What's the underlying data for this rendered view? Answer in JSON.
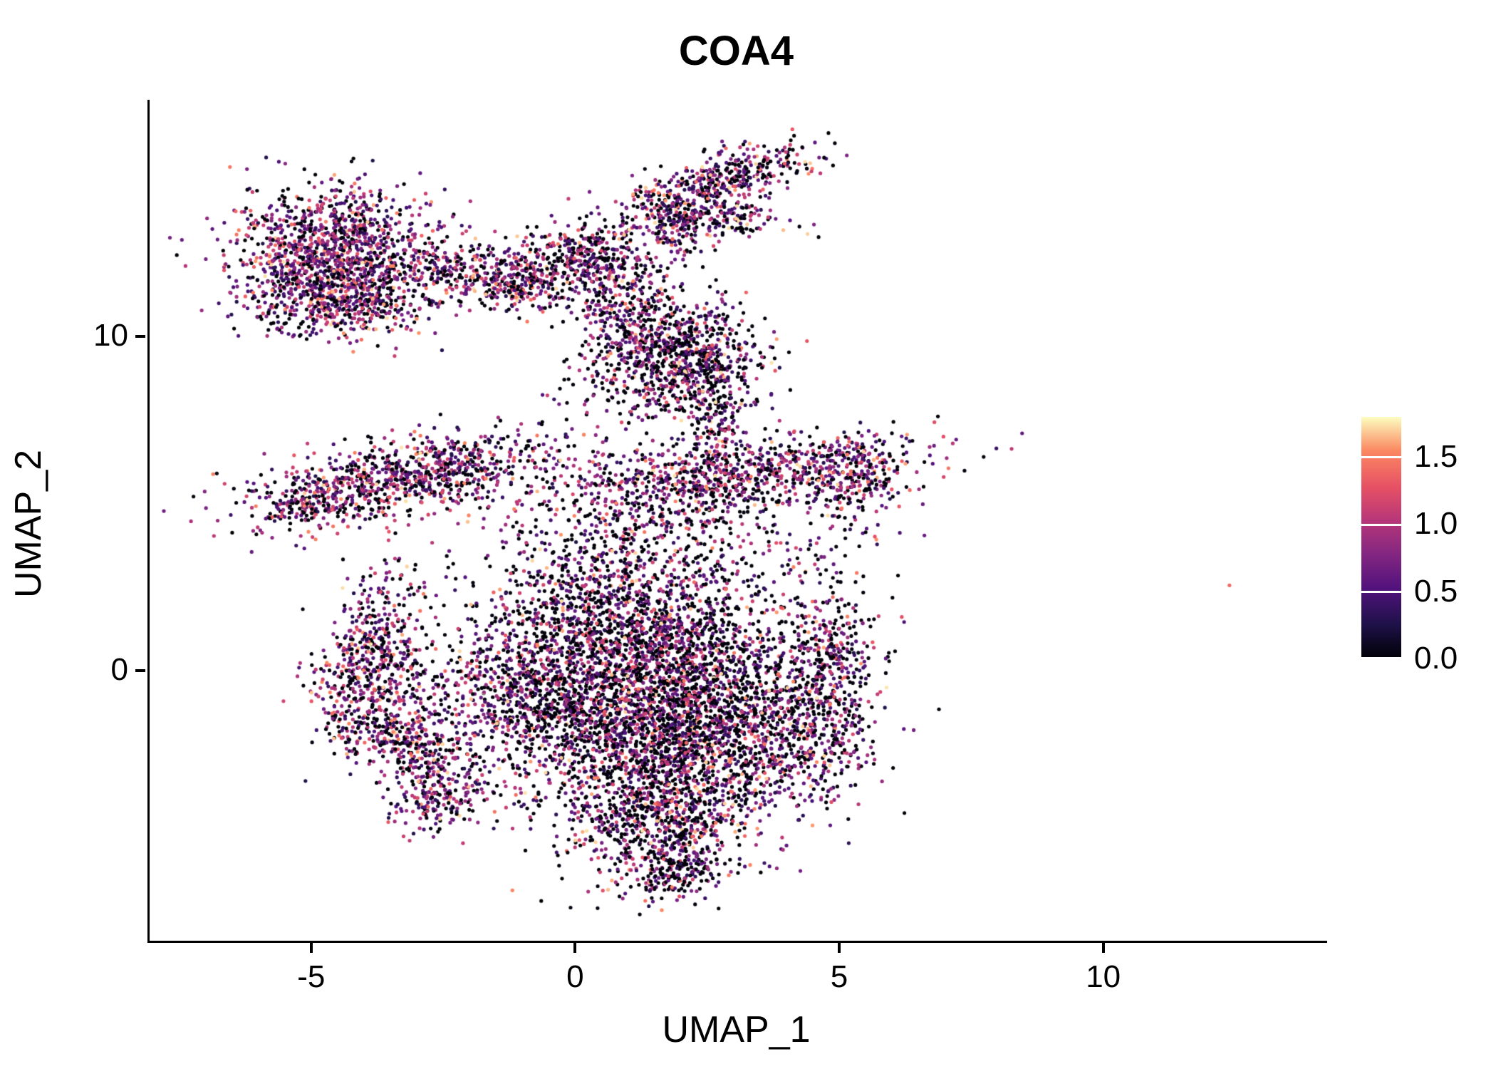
{
  "chart_data": {
    "type": "scatter",
    "title": "COA4",
    "xlabel": "UMAP_1",
    "ylabel": "UMAP_2",
    "xlim": [
      -8.1,
      14.2
    ],
    "ylim": [
      -8.1,
      17.1
    ],
    "xticks": [
      {
        "v": -5,
        "label": "-5"
      },
      {
        "v": 0,
        "label": "0"
      },
      {
        "v": 5,
        "label": "5"
      },
      {
        "v": 10,
        "label": "10"
      }
    ],
    "yticks": [
      {
        "v": 0,
        "label": "0"
      },
      {
        "v": 10,
        "label": "10"
      }
    ],
    "point_radius": 2.6,
    "grid": false,
    "colormap": {
      "name": "magma",
      "domain": [
        0,
        1.8
      ],
      "stops": [
        {
          "t": 0.0,
          "color": "#000004"
        },
        {
          "t": 0.14,
          "color": "#1d1147"
        },
        {
          "t": 0.29,
          "color": "#51127c"
        },
        {
          "t": 0.43,
          "color": "#822681"
        },
        {
          "t": 0.57,
          "color": "#b63679"
        },
        {
          "t": 0.71,
          "color": "#e65164"
        },
        {
          "t": 0.86,
          "color": "#fb8761"
        },
        {
          "t": 1.0,
          "color": "#fcfdbf"
        }
      ]
    },
    "legend": {
      "position": "right",
      "ticks": [
        {
          "v": 0.0,
          "label": "0.0"
        },
        {
          "v": 0.5,
          "label": "0.5"
        },
        {
          "v": 1.0,
          "label": "1.0"
        },
        {
          "v": 1.5,
          "label": "1.5"
        }
      ]
    },
    "expression_bins": [
      [
        0,
        0.05
      ],
      [
        0.25,
        0.7
      ],
      [
        0.7,
        1.2
      ],
      [
        1.2,
        1.75
      ]
    ],
    "clusters": [
      {
        "name": "topleft-main",
        "n": 1400,
        "cx": -4.6,
        "cy": 12.4,
        "sx": 0.95,
        "sy": 1.0,
        "rot": 0,
        "expr": [
          0.28,
          0.3,
          0.32,
          0.1
        ]
      },
      {
        "name": "topleft-fringe",
        "n": 260,
        "cx": -4.4,
        "cy": 10.9,
        "sx": 0.85,
        "sy": 0.45,
        "rot": 0,
        "expr": [
          0.32,
          0.3,
          0.28,
          0.1
        ]
      },
      {
        "name": "bridge-a",
        "n": 170,
        "cx": -2.2,
        "cy": 11.9,
        "sx": 0.5,
        "sy": 0.4,
        "rot": 0,
        "expr": [
          0.35,
          0.28,
          0.27,
          0.1
        ]
      },
      {
        "name": "bridge-b",
        "n": 90,
        "cx": -1.2,
        "cy": 11.4,
        "sx": 0.35,
        "sy": 0.3,
        "rot": 0,
        "expr": [
          0.35,
          0.28,
          0.27,
          0.1
        ]
      },
      {
        "name": "topcenter",
        "n": 520,
        "cx": -0.1,
        "cy": 12.3,
        "sx": 1.0,
        "sy": 0.5,
        "rot": 25,
        "expr": [
          0.38,
          0.27,
          0.26,
          0.09
        ]
      },
      {
        "name": "topcenter-ext",
        "n": 160,
        "cx": 0.7,
        "cy": 11.3,
        "sx": 0.55,
        "sy": 0.6,
        "rot": 0,
        "expr": [
          0.4,
          0.26,
          0.25,
          0.09
        ]
      },
      {
        "name": "topcenter-trail",
        "n": 130,
        "cx": 1.0,
        "cy": 10.4,
        "sx": 0.5,
        "sy": 0.7,
        "rot": 0,
        "expr": [
          0.42,
          0.26,
          0.24,
          0.08
        ]
      },
      {
        "name": "topright-flag",
        "n": 430,
        "cx": 2.7,
        "cy": 14.7,
        "sx": 1.0,
        "sy": 0.36,
        "rot": 28,
        "expr": [
          0.36,
          0.27,
          0.27,
          0.1
        ]
      },
      {
        "name": "topright-bar",
        "n": 190,
        "cx": 2.5,
        "cy": 13.6,
        "sx": 0.8,
        "sy": 0.25,
        "rot": -8,
        "expr": [
          0.38,
          0.27,
          0.26,
          0.09
        ]
      },
      {
        "name": "topright-stem",
        "n": 90,
        "cx": 1.9,
        "cy": 13.1,
        "sx": 0.3,
        "sy": 0.4,
        "rot": 0,
        "expr": [
          0.38,
          0.27,
          0.26,
          0.09
        ]
      },
      {
        "name": "upper-mid",
        "n": 680,
        "cx": 2.0,
        "cy": 9.5,
        "sx": 0.75,
        "sy": 0.8,
        "rot": 0,
        "expr": [
          0.44,
          0.25,
          0.23,
          0.08
        ]
      },
      {
        "name": "upper-mid-fringe",
        "n": 200,
        "cx": 1.5,
        "cy": 8.6,
        "sx": 0.9,
        "sy": 0.7,
        "rot": 0,
        "expr": [
          0.45,
          0.25,
          0.22,
          0.08
        ]
      },
      {
        "name": "connector",
        "n": 150,
        "cx": 2.6,
        "cy": 7.5,
        "sx": 0.3,
        "sy": 0.8,
        "rot": 0,
        "expr": [
          0.4,
          0.27,
          0.25,
          0.08
        ]
      },
      {
        "name": "left-band",
        "n": 900,
        "cx": -3.2,
        "cy": 5.8,
        "sx": 1.55,
        "sy": 0.55,
        "rot": 18,
        "expr": [
          0.3,
          0.28,
          0.31,
          0.11
        ]
      },
      {
        "name": "left-band-tip",
        "n": 150,
        "cx": -5.0,
        "cy": 5.0,
        "sx": 0.55,
        "sy": 0.35,
        "rot": 18,
        "expr": [
          0.32,
          0.28,
          0.29,
          0.11
        ]
      },
      {
        "name": "right-band",
        "n": 780,
        "cx": 2.9,
        "cy": 5.9,
        "sx": 1.75,
        "sy": 0.5,
        "rot": 8,
        "expr": [
          0.33,
          0.27,
          0.29,
          0.11
        ]
      },
      {
        "name": "right-band-knob",
        "n": 240,
        "cx": 5.2,
        "cy": 5.8,
        "sx": 0.5,
        "sy": 0.7,
        "rot": 0,
        "expr": [
          0.34,
          0.27,
          0.28,
          0.11
        ]
      },
      {
        "name": "right-band-fringe",
        "n": 240,
        "cx": 2.0,
        "cy": 4.7,
        "sx": 1.4,
        "sy": 0.5,
        "rot": 5,
        "expr": [
          0.42,
          0.26,
          0.24,
          0.08
        ]
      },
      {
        "name": "central-core",
        "n": 1750,
        "cx": 0.8,
        "cy": -1.2,
        "sx": 1.5,
        "sy": 1.5,
        "rot": 0,
        "expr": [
          0.46,
          0.25,
          0.22,
          0.07
        ]
      },
      {
        "name": "central-core-2",
        "n": 1250,
        "cx": 2.3,
        "cy": -2.2,
        "sx": 1.3,
        "sy": 1.4,
        "rot": 0,
        "expr": [
          0.46,
          0.25,
          0.22,
          0.07
        ]
      },
      {
        "name": "central-upper",
        "n": 780,
        "cx": 0.6,
        "cy": 1.7,
        "sx": 1.05,
        "sy": 1.15,
        "rot": 0,
        "expr": [
          0.44,
          0.26,
          0.23,
          0.07
        ]
      },
      {
        "name": "central-upper-right",
        "n": 680,
        "cx": 2.3,
        "cy": 0.5,
        "sx": 1.3,
        "sy": 1.0,
        "rot": 0,
        "expr": [
          0.45,
          0.25,
          0.23,
          0.07
        ]
      },
      {
        "name": "central-bottom",
        "n": 580,
        "cx": 1.6,
        "cy": -4.6,
        "sx": 0.9,
        "sy": 1.0,
        "rot": 0,
        "expr": [
          0.45,
          0.25,
          0.22,
          0.08
        ]
      },
      {
        "name": "central-tail",
        "n": 150,
        "cx": 1.8,
        "cy": -6.0,
        "sx": 0.5,
        "sy": 0.5,
        "rot": 0,
        "expr": [
          0.45,
          0.25,
          0.22,
          0.08
        ]
      },
      {
        "name": "central-left-spur",
        "n": 340,
        "cx": -1.0,
        "cy": -0.6,
        "sx": 0.8,
        "sy": 1.0,
        "rot": 0,
        "expr": [
          0.44,
          0.26,
          0.23,
          0.07
        ]
      },
      {
        "name": "central-right-edge",
        "n": 430,
        "cx": 4.8,
        "cy": -0.2,
        "sx": 0.45,
        "sy": 1.5,
        "rot": 0,
        "expr": [
          0.38,
          0.26,
          0.27,
          0.09
        ]
      },
      {
        "name": "central-right-fringe",
        "n": 240,
        "cx": 4.2,
        "cy": -1.9,
        "sx": 0.7,
        "sy": 0.8,
        "rot": 0,
        "expr": [
          0.42,
          0.26,
          0.24,
          0.08
        ]
      },
      {
        "name": "crescent-vertical",
        "n": 480,
        "cx": -3.9,
        "cy": 0.5,
        "sx": 0.45,
        "sy": 1.3,
        "rot": -8,
        "expr": [
          0.32,
          0.28,
          0.29,
          0.11
        ]
      },
      {
        "name": "crescent-diag",
        "n": 340,
        "cx": -3.3,
        "cy": -2.2,
        "sx": 0.9,
        "sy": 0.45,
        "rot": -45,
        "expr": [
          0.32,
          0.28,
          0.29,
          0.11
        ]
      },
      {
        "name": "crescent-bottom",
        "n": 170,
        "cx": -2.6,
        "cy": -3.9,
        "sx": 0.45,
        "sy": 0.5,
        "rot": 0,
        "expr": [
          0.34,
          0.28,
          0.28,
          0.1
        ]
      },
      {
        "name": "crescent-fringe",
        "n": 200,
        "cx": -2.9,
        "cy": -0.8,
        "sx": 0.7,
        "sy": 1.1,
        "rot": 0,
        "expr": [
          0.4,
          0.27,
          0.25,
          0.08
        ]
      },
      {
        "name": "gap-scatter-upper",
        "n": 170,
        "cx": 0.3,
        "cy": 3.1,
        "sx": 1.5,
        "sy": 0.9,
        "rot": 0,
        "expr": [
          0.48,
          0.25,
          0.2,
          0.07
        ]
      },
      {
        "name": "gap-scatter-right",
        "n": 140,
        "cx": 3.0,
        "cy": 3.4,
        "sx": 1.4,
        "sy": 0.7,
        "rot": 0,
        "expr": [
          0.48,
          0.25,
          0.2,
          0.07
        ]
      }
    ],
    "outlier_points": [
      {
        "x": 12.35,
        "y": 2.55,
        "value": 1.4
      }
    ]
  }
}
